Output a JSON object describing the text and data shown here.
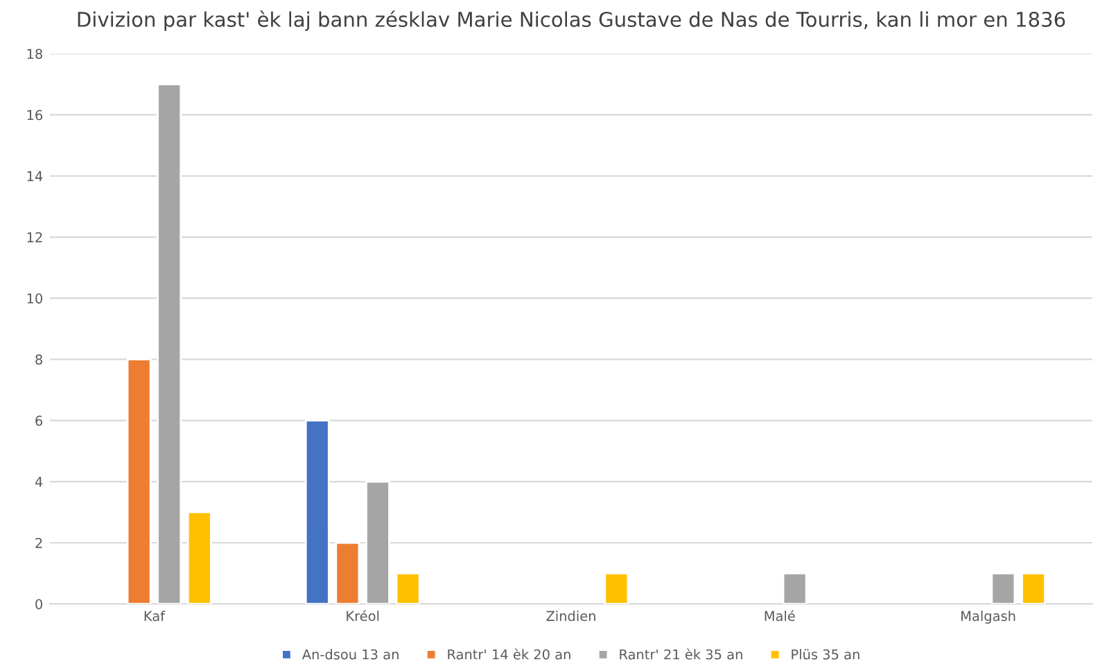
{
  "chart_data": {
    "type": "bar",
    "title": "Divizion par kast' èk laj bann zésklav Marie Nicolas Gustave de Nas de Tourris, kan li mor en 1836",
    "categories": [
      "Kaf",
      "Kréol",
      "Zindien",
      "Malé",
      "Malgash"
    ],
    "series": [
      {
        "name": "An-dsou 13 an",
        "color": "#4472c4",
        "values": [
          null,
          6,
          null,
          null,
          null
        ]
      },
      {
        "name": "Rantr' 14 èk 20 an",
        "color": "#ed7d31",
        "values": [
          8,
          2,
          null,
          null,
          null
        ]
      },
      {
        "name": "Rantr' 21 èk 35 an",
        "color": "#a5a5a5",
        "values": [
          17,
          4,
          null,
          1,
          1
        ]
      },
      {
        "name": "Plüs 35 an",
        "color": "#ffc000",
        "values": [
          3,
          1,
          1,
          null,
          1
        ]
      }
    ],
    "ylim": [
      0,
      18
    ],
    "yticks": [
      0,
      2,
      4,
      6,
      8,
      10,
      12,
      14,
      16,
      18
    ],
    "grid": "y",
    "legend": "bottom"
  }
}
